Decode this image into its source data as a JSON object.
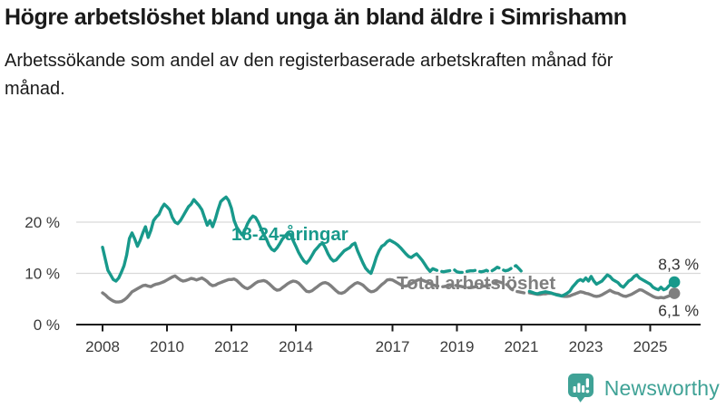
{
  "header": {
    "title": "Högre arbetslöshet bland unga än bland äldre i Simrishamn",
    "subtitle": "Arbetssökande som andel av den registerbaserade arbetskraften månad för månad."
  },
  "footer": {
    "brand": "Newsworthy",
    "logo_icon": "bar-chart-speech-bubble-icon",
    "brand_color": "#3fa296"
  },
  "chart_data": {
    "type": "line",
    "unit": "%",
    "x_start": {
      "year": 2008,
      "month": 1
    },
    "x_end": {
      "year": 2025,
      "month": 10
    },
    "x_axis": {
      "tick_years": [
        2008,
        2010,
        2012,
        2014,
        2017,
        2019,
        2021,
        2023,
        2025
      ]
    },
    "y_axis": {
      "ticks": [
        {
          "value": 0,
          "label": "0 %",
          "grid": false
        },
        {
          "value": 10,
          "label": "10 %",
          "grid": true
        },
        {
          "value": 20,
          "label": "20 %",
          "grid": true
        }
      ]
    },
    "ylim": [
      0,
      27
    ],
    "grid_color": "#d9d9d9",
    "axis_color": "#1a1a1a",
    "tick_text_color": "#3a3a3a",
    "dashed_note": "values between 2018-03 and 2021-02 drawn dashed (data break), gap at 2021-03",
    "dashed_index_range": [
      122,
      157
    ],
    "series": [
      {
        "name": "18-24-åringar",
        "color": "#18998b",
        "end_label": "8,3 %",
        "end_label_position": "above",
        "inline_label_anchor": {
          "year": 2012.0,
          "value": 16.5
        },
        "values": [
          15.1,
          12.8,
          10.6,
          9.7,
          8.8,
          8.5,
          9.1,
          10.2,
          11.5,
          13.6,
          16.8,
          17.9,
          16.7,
          15.3,
          16.4,
          17.9,
          19.1,
          17.0,
          18.4,
          20.3,
          21.0,
          21.5,
          22.7,
          23.5,
          23.0,
          22.4,
          20.9,
          20.0,
          19.7,
          20.3,
          21.2,
          22.1,
          23.0,
          23.5,
          24.4,
          23.8,
          23.2,
          22.4,
          20.9,
          19.4,
          20.3,
          19.1,
          20.6,
          22.4,
          24.0,
          24.5,
          24.9,
          24.2,
          22.7,
          20.3,
          19.0,
          18.2,
          17.5,
          18.4,
          19.7,
          20.6,
          21.2,
          20.9,
          20.0,
          18.8,
          17.6,
          16.7,
          15.5,
          14.7,
          14.4,
          15.0,
          15.8,
          16.7,
          17.3,
          17.9,
          17.6,
          16.4,
          15.3,
          14.1,
          13.2,
          12.4,
          12.0,
          12.6,
          13.5,
          14.4,
          15.0,
          15.6,
          15.9,
          15.0,
          13.8,
          12.9,
          12.4,
          12.6,
          13.2,
          13.8,
          14.4,
          14.7,
          15.0,
          15.6,
          15.9,
          14.4,
          13.2,
          12.0,
          11.0,
          10.4,
          10.0,
          11.5,
          13.2,
          14.4,
          15.3,
          15.6,
          16.2,
          16.5,
          16.2,
          15.9,
          15.5,
          15.0,
          14.4,
          13.8,
          13.3,
          13.1,
          13.5,
          13.8,
          13.2,
          12.6,
          11.8,
          11.0,
          10.4,
          10.9,
          10.7,
          10.5,
          10.4,
          10.3,
          10.4,
          10.5,
          10.6,
          10.7,
          10.3,
          10.2,
          10.2,
          10.3,
          10.4,
          10.5,
          10.5,
          10.6,
          10.4,
          10.3,
          10.4,
          10.6,
          10.3,
          10.5,
          10.8,
          11.2,
          11.0,
          10.7,
          10.5,
          10.6,
          10.9,
          11.3,
          11.5,
          11.0,
          10.4,
          9.8,
          null,
          6.5,
          6.3,
          6.1,
          6.0,
          6.2,
          6.3,
          6.4,
          6.3,
          6.2,
          6.0,
          5.8,
          5.7,
          5.6,
          5.8,
          6.1,
          6.5,
          7.3,
          7.9,
          8.5,
          8.8,
          8.5,
          9.1,
          8.5,
          9.4,
          8.5,
          7.9,
          8.2,
          8.5,
          9.1,
          9.7,
          9.4,
          8.8,
          8.5,
          8.2,
          7.6,
          7.3,
          7.9,
          8.5,
          8.8,
          9.4,
          9.7,
          9.1,
          8.8,
          8.5,
          8.2,
          7.9,
          7.3,
          7.0,
          6.8,
          7.3,
          6.8,
          7.0,
          7.6,
          7.9,
          8.3
        ]
      },
      {
        "name": "Total arbetslöshet",
        "color": "#7f7f7f",
        "end_label": "6,1 %",
        "end_label_position": "below",
        "inline_label_anchor": {
          "year": 2017.13,
          "value": 6.9
        },
        "values": [
          6.2,
          5.8,
          5.3,
          4.9,
          4.6,
          4.4,
          4.4,
          4.5,
          4.8,
          5.2,
          5.8,
          6.4,
          6.7,
          7.0,
          7.3,
          7.6,
          7.7,
          7.5,
          7.4,
          7.7,
          7.9,
          8.0,
          8.2,
          8.4,
          8.7,
          9.0,
          9.3,
          9.5,
          9.1,
          8.7,
          8.5,
          8.6,
          8.8,
          9.0,
          8.9,
          8.7,
          8.9,
          9.1,
          8.8,
          8.4,
          7.9,
          7.6,
          7.7,
          8.0,
          8.2,
          8.4,
          8.6,
          8.8,
          8.8,
          8.9,
          8.6,
          8.1,
          7.6,
          7.2,
          7.0,
          7.3,
          7.7,
          8.1,
          8.4,
          8.5,
          8.6,
          8.4,
          8.0,
          7.5,
          7.0,
          6.7,
          6.8,
          7.2,
          7.6,
          8.0,
          8.3,
          8.5,
          8.4,
          8.1,
          7.6,
          7.0,
          6.5,
          6.4,
          6.6,
          7.0,
          7.4,
          7.8,
          8.1,
          8.2,
          8.0,
          7.6,
          7.1,
          6.6,
          6.2,
          6.1,
          6.3,
          6.7,
          7.2,
          7.6,
          8.0,
          8.2,
          8.0,
          7.7,
          7.2,
          6.7,
          6.4,
          6.5,
          6.8,
          7.3,
          7.8,
          8.2,
          8.7,
          8.8,
          8.7,
          8.4,
          8.1,
          7.8,
          7.5,
          7.5,
          7.7,
          8.0,
          8.3,
          8.6,
          8.8,
          8.7,
          8.5,
          8.3,
          8.0,
          7.8,
          7.6,
          7.5,
          7.4,
          7.4,
          7.5,
          7.6,
          7.7,
          7.7,
          7.6,
          7.5,
          7.4,
          7.3,
          7.2,
          7.2,
          7.3,
          7.4,
          7.4,
          7.5,
          7.5,
          7.6,
          7.7,
          7.8,
          8.1,
          8.4,
          8.3,
          8.1,
          7.9,
          7.7,
          7.0,
          6.7,
          6.5,
          6.4,
          6.3,
          6.2,
          null,
          6.2,
          6.1,
          6.0,
          5.9,
          5.9,
          6.0,
          6.0,
          6.1,
          6.1,
          6.0,
          5.9,
          5.8,
          5.6,
          5.5,
          5.5,
          5.6,
          5.8,
          6.0,
          6.2,
          6.4,
          6.3,
          6.1,
          6.0,
          5.8,
          5.6,
          5.5,
          5.6,
          5.8,
          6.1,
          6.4,
          6.7,
          6.4,
          6.2,
          6.1,
          5.8,
          5.6,
          5.5,
          5.7,
          5.9,
          6.2,
          6.5,
          6.8,
          6.7,
          6.4,
          6.1,
          5.8,
          5.5,
          5.3,
          5.2,
          5.3,
          5.2,
          5.4,
          5.6,
          5.8,
          6.1
        ]
      }
    ]
  }
}
